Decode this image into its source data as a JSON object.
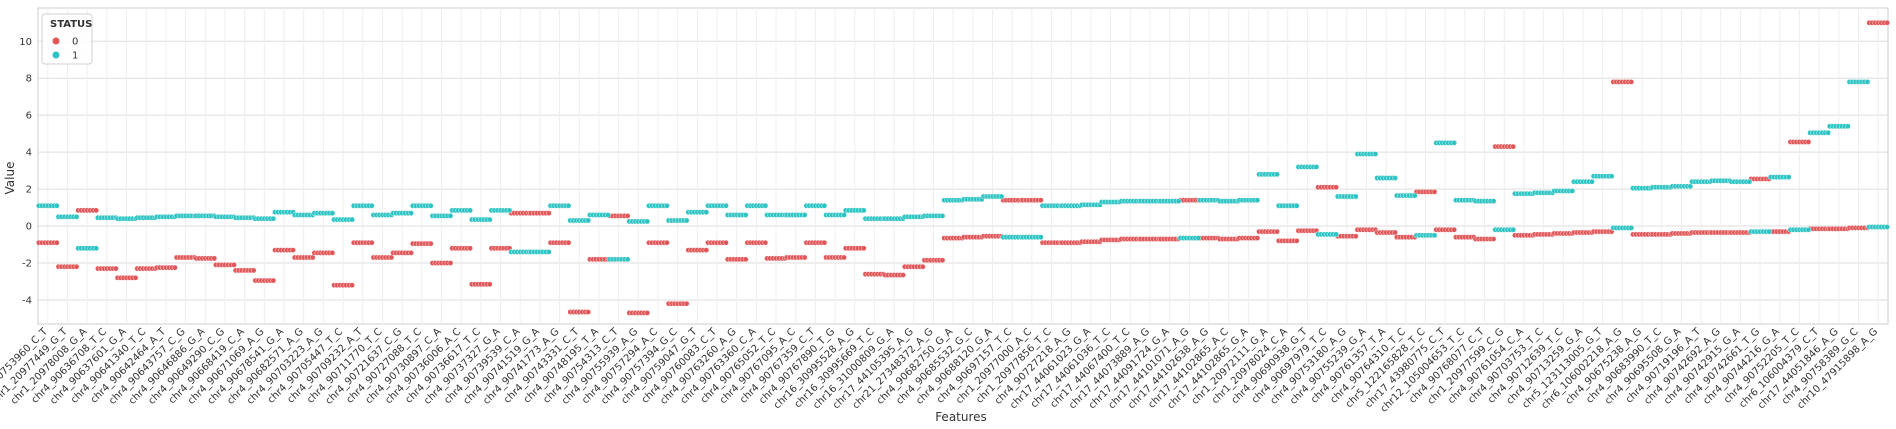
{
  "chart_data": {
    "type": "scatter",
    "xlabel": "Features",
    "ylabel": "Value",
    "ylim": [
      -5.3,
      11.8
    ],
    "yticks": [
      -4,
      -2,
      0,
      2,
      4,
      6,
      8,
      10
    ],
    "grid": true,
    "legend": {
      "title": "STATUS",
      "placement": "top-left",
      "entries": [
        {
          "label": "0",
          "color": "#e15759"
        },
        {
          "label": "1",
          "color": "#2ec4c4"
        }
      ]
    },
    "categories": [
      "chr4_90753960_C_T",
      "chr1_20977449_G_T",
      "chr1_20978008_G_A",
      "chr4_90636708_T_C",
      "chr4_90637601_G_A",
      "chr4_90641340_T_C",
      "chr4_90642464_A_T",
      "chr4_90643757_C_G",
      "chr4_90646886_G_A",
      "chr4_90649290_C_G",
      "chr4_90668419_C_A",
      "chr4_90671069_A_G",
      "chr4_90678541_G_A",
      "chr4_90682571_A_G",
      "chr4_90703223_A_G",
      "chr4_90705447_T_C",
      "chr4_90709232_A_T",
      "chr4_90711770_T_C",
      "chr4_90721637_C_G",
      "chr4_90727088_T_C",
      "chr4_90730897_C_A",
      "chr4_90736006_A_C",
      "chr4_90736617_T_C",
      "chr4_90737327_G_A",
      "chr4_90739539_C_A",
      "chr4_90741519_G_A",
      "chr4_90741773_A_G",
      "chr4_90743331_C_T",
      "chr4_90748195_T_A",
      "chr4_90754313_C_T",
      "chr4_90755939_A_G",
      "chr4_90757294_A_C",
      "chr4_90757394_G_C",
      "chr4_90759047_G_T",
      "chr4_90760083_C_T",
      "chr4_90763260_A_G",
      "chr4_90763360_C_A",
      "chr4_90765052_T_C",
      "chr4_90767095_A_C",
      "chr4_90767359_C_T",
      "chr4_90767890_T_G",
      "chr16_30995528_A_G",
      "chr16_30995669_T_C",
      "chr16_31000809_G_A",
      "chr17_44105395_A_G",
      "chr21_27348372_A_G",
      "chr4_90682750_G_A",
      "chr4_90685532_G_C",
      "chr4_90688120_G_A",
      "chr4_90697157_T_C",
      "chr1_20977000_A_C",
      "chr1_20977856_T_C",
      "chr4_90727218_A_G",
      "chr17_44061023_G_A",
      "chr17_44061036_T_C",
      "chr17_44067400_T_C",
      "chr17_44073889_A_G",
      "chr17_44091724_G_A",
      "chr17_44101071_A_G",
      "chr17_44102638_A_G",
      "chr17_44102865_A_C",
      "chr17_44102865_G_A",
      "chr1_20972111_G_A",
      "chr1_20978024_C_A",
      "chr4_90690938_G_T",
      "chr4_90697979_T_C",
      "chr4_90753180_A_G",
      "chr4_90755239_G_A",
      "chr4_90761357_T_A",
      "chr4_90764310_T_C",
      "chr5_122165828_T_C",
      "chr17_43980775_C_T",
      "chr12_105004653_T_C",
      "chr4_90768077_C_T",
      "chr1_20977599_C_G",
      "chr4_90761054_C_A",
      "chr4_90703753_T_C",
      "chr4_90712639_T_C",
      "chr4_90713259_G_A",
      "chr5_123113005_G_T",
      "chr6_106002218_A_G",
      "chr4_90675238_A_G",
      "chr4_90683990_T_C",
      "chr4_90695508_G_A",
      "chr4_90719196_A_T",
      "chr4_90742692_A_G",
      "chr4_90742915_G_A",
      "chr4_90742661_T_G",
      "chr4_90744216_G_A",
      "chr4_90752205_T_C",
      "chr6_106004379_C_T",
      "chr17_44051846_A_G",
      "chr4_90758389_G_C",
      "chr10_47915898_A_G"
    ],
    "series": [
      {
        "name": "0",
        "values": [
          [
            -0.9,
            1.1
          ],
          [
            -2.2,
            0.5
          ],
          [
            0.85,
            -1.2
          ],
          [
            -2.3,
            0.45
          ],
          [
            -2.8,
            0.4
          ],
          [
            -2.3,
            0.45
          ],
          [
            -2.25,
            0.5
          ],
          [
            -1.7,
            0.55
          ],
          [
            -1.75,
            0.55
          ],
          [
            -2.1,
            0.5
          ],
          [
            -2.4,
            0.45
          ],
          [
            -2.95,
            0.4
          ],
          [
            -1.3,
            0.75
          ],
          [
            -1.7,
            0.6
          ],
          [
            -1.45,
            0.7
          ],
          [
            -3.2,
            0.35
          ],
          [
            -0.9,
            1.1
          ],
          [
            -1.7,
            0.6
          ],
          [
            -1.45,
            0.7
          ],
          [
            -0.95,
            1.1
          ],
          [
            -2.0,
            0.55
          ],
          [
            -1.2,
            0.85
          ],
          [
            -3.15,
            0.35
          ],
          [
            -1.2,
            0.85
          ],
          [
            0.7,
            -1.4
          ],
          [
            0.7,
            -1.4
          ],
          [
            -0.9,
            1.1
          ],
          [
            -4.65,
            0.3
          ],
          [
            -1.8,
            0.6
          ],
          [
            0.55,
            -1.8
          ],
          [
            -4.7,
            0.25
          ],
          [
            -0.9,
            1.1
          ],
          [
            -4.2,
            0.3
          ],
          [
            -1.3,
            0.75
          ],
          [
            -0.9,
            1.1
          ],
          [
            -1.8,
            0.6
          ],
          [
            -0.9,
            1.1
          ],
          [
            -1.75,
            0.6
          ],
          [
            -1.7,
            0.6
          ],
          [
            -0.9,
            1.1
          ],
          [
            -1.7,
            0.6
          ],
          [
            -1.2,
            0.85
          ],
          [
            -2.6,
            0.4
          ],
          [
            -2.65,
            0.4
          ],
          [
            -2.2,
            0.5
          ],
          [
            -1.85,
            0.55
          ],
          [
            -0.65,
            1.4
          ],
          [
            -0.6,
            1.45
          ],
          [
            -0.55,
            1.6
          ],
          [
            1.4,
            -0.6
          ],
          [
            1.4,
            -0.6
          ],
          [
            -0.9,
            1.1
          ],
          [
            -0.9,
            1.1
          ],
          [
            -0.85,
            1.15
          ],
          [
            -0.75,
            1.3
          ],
          [
            -0.7,
            1.35
          ],
          [
            -0.7,
            1.35
          ],
          [
            -0.7,
            1.35
          ],
          [
            1.4,
            -0.65
          ],
          [
            -0.65,
            1.4
          ],
          [
            -0.7,
            1.35
          ],
          [
            -0.65,
            1.4
          ],
          [
            -0.3,
            2.8
          ],
          [
            -0.8,
            1.1
          ],
          [
            -0.25,
            3.2
          ],
          [
            2.1,
            -0.45
          ],
          [
            -0.55,
            1.6
          ],
          [
            -0.2,
            3.9
          ],
          [
            -0.35,
            2.6
          ],
          [
            -0.6,
            1.65
          ],
          [
            1.85,
            -0.5
          ],
          [
            -0.2,
            4.5
          ],
          [
            -0.6,
            1.4
          ],
          [
            -0.7,
            1.35
          ],
          [
            4.3,
            -0.2
          ],
          [
            -0.5,
            1.75
          ],
          [
            -0.45,
            1.8
          ],
          [
            -0.4,
            1.9
          ],
          [
            -0.35,
            2.4
          ],
          [
            -0.3,
            2.7
          ],
          [
            7.8,
            -0.1
          ],
          [
            -0.45,
            2.05
          ],
          [
            -0.45,
            2.1
          ],
          [
            -0.4,
            2.15
          ],
          [
            -0.35,
            2.4
          ],
          [
            -0.35,
            2.45
          ],
          [
            -0.35,
            2.4
          ],
          [
            2.55,
            -0.3
          ],
          [
            -0.3,
            2.65
          ],
          [
            4.55,
            -0.2
          ],
          [
            -0.15,
            5.05
          ],
          [
            -0.15,
            5.4
          ],
          [
            -0.1,
            7.8
          ],
          [
            11.0,
            -0.05
          ]
        ]
      },
      {
        "name": "1",
        "values": [
          [
            1.1
          ],
          [
            0.5
          ],
          [
            -1.2
          ],
          [
            0.45
          ],
          [
            0.4
          ],
          [
            0.45
          ],
          [
            0.5
          ],
          [
            0.55
          ],
          [
            0.55
          ],
          [
            0.5
          ],
          [
            0.45
          ],
          [
            0.4
          ],
          [
            0.75
          ],
          [
            0.6
          ],
          [
            0.7
          ],
          [
            0.35
          ],
          [
            1.1
          ],
          [
            0.6
          ],
          [
            0.7
          ],
          [
            1.1
          ],
          [
            0.55
          ],
          [
            0.85
          ],
          [
            0.35
          ],
          [
            0.85
          ],
          [
            -1.4
          ],
          [
            -1.4
          ],
          [
            1.1
          ],
          [
            0.3
          ],
          [
            0.6
          ],
          [
            -1.8
          ],
          [
            0.25
          ],
          [
            1.1
          ],
          [
            0.3
          ],
          [
            0.75
          ],
          [
            1.1
          ],
          [
            0.6
          ],
          [
            1.1
          ],
          [
            0.6
          ],
          [
            0.6
          ],
          [
            1.1
          ],
          [
            0.6
          ],
          [
            0.85
          ],
          [
            0.4
          ],
          [
            0.4
          ],
          [
            0.5
          ],
          [
            0.55
          ],
          [
            1.4
          ],
          [
            1.45
          ],
          [
            1.6
          ],
          [
            -0.6
          ],
          [
            -0.6
          ],
          [
            1.1
          ],
          [
            1.1
          ],
          [
            1.15
          ],
          [
            1.3
          ],
          [
            1.35
          ],
          [
            1.35
          ],
          [
            1.35
          ],
          [
            -0.65
          ],
          [
            1.4
          ],
          [
            1.35
          ],
          [
            1.4
          ],
          [
            2.8
          ],
          [
            1.1
          ],
          [
            3.2
          ],
          [
            -0.45
          ],
          [
            1.6
          ],
          [
            3.9
          ],
          [
            2.6
          ],
          [
            1.65
          ],
          [
            -0.5
          ],
          [
            4.5
          ],
          [
            1.4
          ],
          [
            1.35
          ],
          [
            -0.2
          ],
          [
            1.75
          ],
          [
            1.8
          ],
          [
            1.9
          ],
          [
            2.4
          ],
          [
            2.7
          ],
          [
            -0.1
          ],
          [
            2.05
          ],
          [
            2.1
          ],
          [
            2.15
          ],
          [
            2.4
          ],
          [
            2.45
          ],
          [
            2.4
          ],
          [
            -0.3
          ],
          [
            2.65
          ],
          [
            -0.2
          ],
          [
            5.05
          ],
          [
            5.4
          ],
          [
            7.8
          ],
          [
            -0.05
          ]
        ]
      }
    ]
  }
}
